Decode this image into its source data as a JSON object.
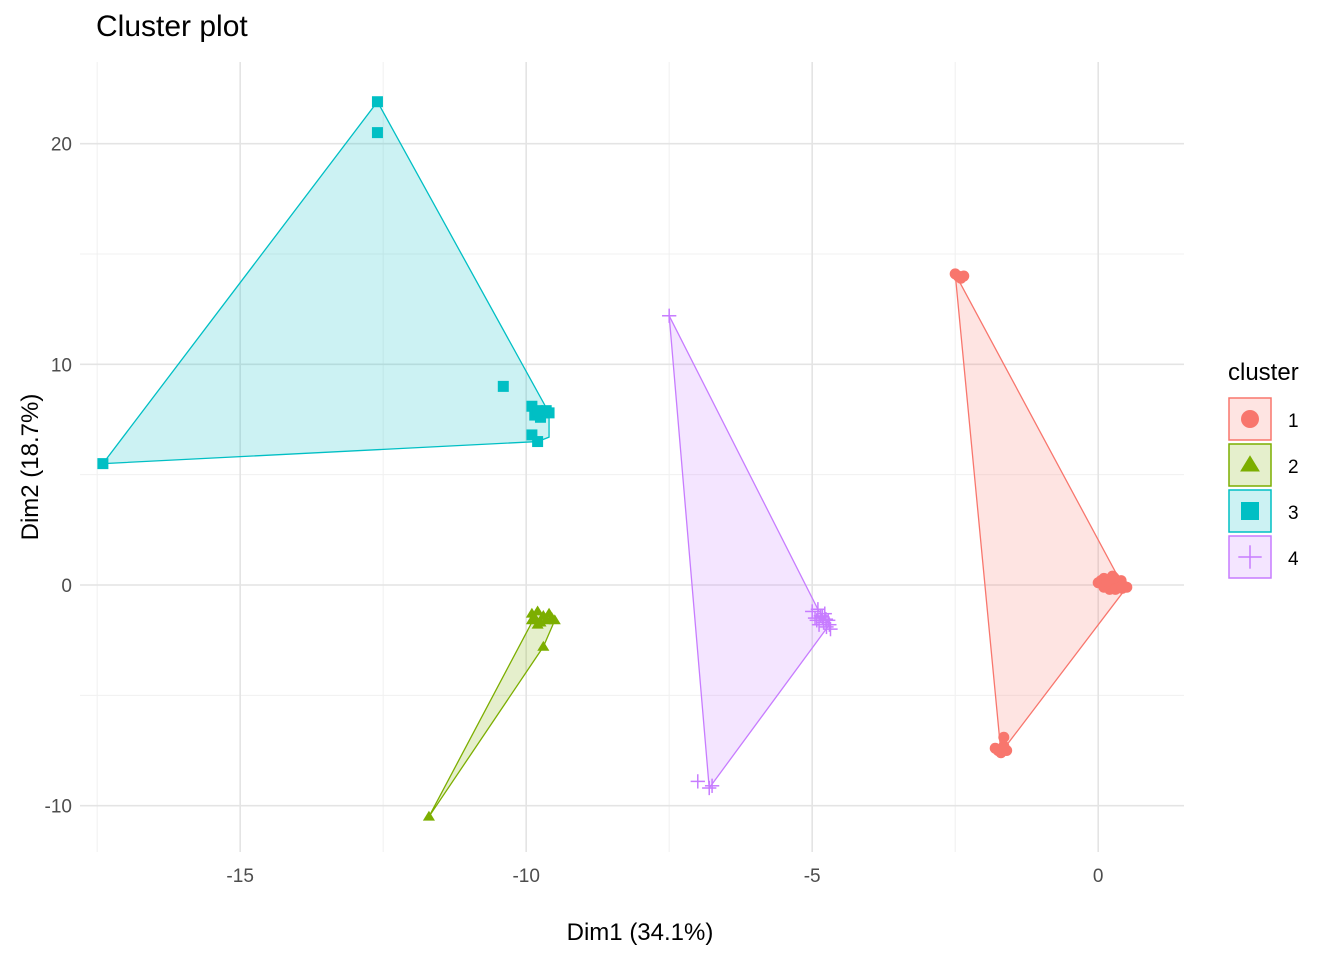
{
  "chart_data": {
    "type": "scatter",
    "title": "Cluster plot",
    "xlabel": "Dim1 (34.1%)",
    "ylabel": "Dim2 (18.7%)",
    "xlim": [
      -17.8,
      1.5
    ],
    "ylim": [
      -12.1,
      23.7
    ],
    "x_ticks": [
      -15,
      -10,
      -5,
      0
    ],
    "x_tick_labels": [
      "-15",
      "-10",
      "-5",
      "0"
    ],
    "y_ticks": [
      -10,
      0,
      10,
      20
    ],
    "y_tick_labels": [
      "-10",
      "0",
      "10",
      "20"
    ],
    "grid": true,
    "legend": {
      "title": "cluster",
      "position": "right"
    },
    "series": [
      {
        "name": "1",
        "marker": "circle",
        "color": "#F8766D",
        "hull": [
          [
            -2.5,
            14.1
          ],
          [
            -1.7,
            -7.6
          ],
          [
            0.5,
            -0.1
          ],
          [
            0.3,
            0.6
          ]
        ],
        "points": [
          [
            -2.5,
            14.1
          ],
          [
            -2.45,
            14.0
          ],
          [
            -2.4,
            13.9
          ],
          [
            -2.35,
            14.0
          ],
          [
            -1.8,
            -7.4
          ],
          [
            -1.75,
            -7.5
          ],
          [
            -1.7,
            -7.6
          ],
          [
            -1.65,
            -7.3
          ],
          [
            -1.6,
            -7.5
          ],
          [
            -1.65,
            -6.9
          ],
          [
            0.0,
            0.1
          ],
          [
            0.05,
            0.2
          ],
          [
            0.1,
            0.3
          ],
          [
            0.15,
            0.0
          ],
          [
            0.2,
            -0.2
          ],
          [
            0.25,
            0.4
          ],
          [
            0.3,
            0.1
          ],
          [
            0.35,
            -0.1
          ],
          [
            0.4,
            0.2
          ],
          [
            0.45,
            -0.05
          ],
          [
            0.5,
            -0.1
          ],
          [
            0.1,
            -0.1
          ],
          [
            0.2,
            0.25
          ],
          [
            0.3,
            -0.2
          ],
          [
            0.38,
            0.05
          ],
          [
            0.15,
            0.15
          ],
          [
            0.28,
            0.32
          ],
          [
            0.42,
            -0.15
          ]
        ]
      },
      {
        "name": "2",
        "marker": "triangle",
        "color": "#7CAE00",
        "hull": [
          [
            -11.7,
            -10.5
          ],
          [
            -9.8,
            -1.2
          ],
          [
            -9.5,
            -1.6
          ],
          [
            -9.7,
            -2.8
          ]
        ],
        "points": [
          [
            -11.7,
            -10.5
          ],
          [
            -9.7,
            -2.8
          ],
          [
            -9.9,
            -1.3
          ],
          [
            -9.85,
            -1.5
          ],
          [
            -9.8,
            -1.2
          ],
          [
            -9.75,
            -1.7
          ],
          [
            -9.7,
            -1.4
          ],
          [
            -9.65,
            -1.6
          ],
          [
            -9.6,
            -1.3
          ],
          [
            -9.55,
            -1.5
          ],
          [
            -9.5,
            -1.6
          ],
          [
            -9.8,
            -1.8
          ],
          [
            -9.9,
            -1.6
          ]
        ]
      },
      {
        "name": "3",
        "marker": "square",
        "color": "#00BFC4",
        "hull": [
          [
            -17.4,
            5.5
          ],
          [
            -12.6,
            21.9
          ],
          [
            -9.6,
            7.8
          ],
          [
            -9.6,
            6.7
          ],
          [
            -9.8,
            6.5
          ]
        ],
        "points": [
          [
            -17.4,
            5.5
          ],
          [
            -12.6,
            21.9
          ],
          [
            -12.6,
            20.5
          ],
          [
            -10.4,
            9.0
          ],
          [
            -9.9,
            8.1
          ],
          [
            -9.85,
            7.7
          ],
          [
            -9.8,
            7.9
          ],
          [
            -9.75,
            7.6
          ],
          [
            -9.7,
            7.8
          ],
          [
            -9.65,
            7.9
          ],
          [
            -9.6,
            7.8
          ],
          [
            -9.9,
            6.8
          ],
          [
            -9.8,
            6.5
          ]
        ]
      },
      {
        "name": "4",
        "marker": "plus",
        "color": "#C77CFF",
        "hull": [
          [
            -7.5,
            12.2
          ],
          [
            -6.8,
            -9.2
          ],
          [
            -4.7,
            -1.8
          ],
          [
            -4.9,
            -1.1
          ]
        ],
        "points": [
          [
            -7.5,
            12.2
          ],
          [
            -7.0,
            -8.9
          ],
          [
            -6.8,
            -9.2
          ],
          [
            -6.75,
            -9.1
          ],
          [
            -5.0,
            -1.2
          ],
          [
            -4.95,
            -1.5
          ],
          [
            -4.9,
            -1.1
          ],
          [
            -4.88,
            -1.8
          ],
          [
            -4.85,
            -1.4
          ],
          [
            -4.8,
            -1.7
          ],
          [
            -4.78,
            -1.3
          ],
          [
            -4.75,
            -1.9
          ],
          [
            -4.72,
            -1.6
          ],
          [
            -4.7,
            -1.8
          ],
          [
            -4.68,
            -2.0
          ],
          [
            -4.92,
            -1.6
          ],
          [
            -4.82,
            -1.45
          ],
          [
            -4.76,
            -1.55
          ]
        ]
      }
    ]
  }
}
